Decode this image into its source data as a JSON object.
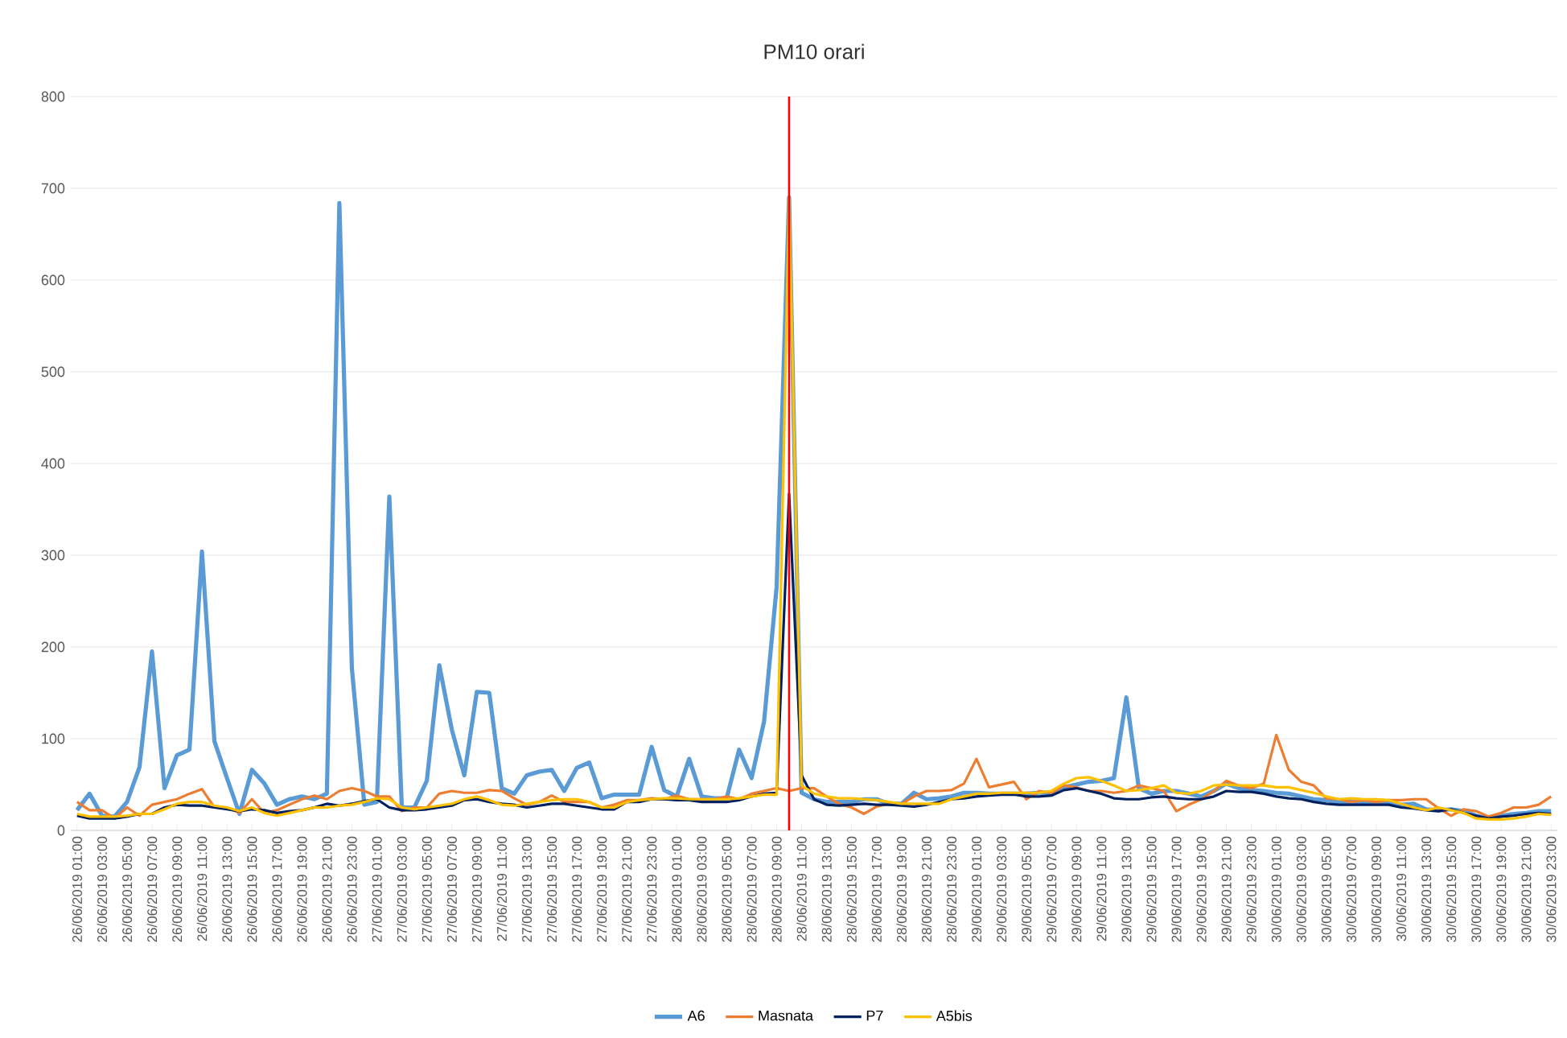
{
  "chart_data": {
    "type": "line",
    "title": "PM10 orari",
    "x": [
      "2019-06-26T01:00",
      "2019-06-26T02:00",
      "2019-06-26T03:00",
      "2019-06-26T04:00",
      "2019-06-26T05:00",
      "2019-06-26T06:00",
      "2019-06-26T07:00",
      "2019-06-26T08:00",
      "2019-06-26T09:00",
      "2019-06-26T10:00",
      "2019-06-26T11:00",
      "2019-06-26T12:00",
      "2019-06-26T13:00",
      "2019-06-26T14:00",
      "2019-06-26T15:00",
      "2019-06-26T16:00",
      "2019-06-26T17:00",
      "2019-06-26T18:00",
      "2019-06-26T19:00",
      "2019-06-26T20:00",
      "2019-06-26T21:00",
      "2019-06-26T22:00",
      "2019-06-26T23:00",
      "2019-06-27T00:00",
      "2019-06-27T01:00",
      "2019-06-27T02:00",
      "2019-06-27T03:00",
      "2019-06-27T04:00",
      "2019-06-27T05:00",
      "2019-06-27T06:00",
      "2019-06-27T07:00",
      "2019-06-27T08:00",
      "2019-06-27T09:00",
      "2019-06-27T10:00",
      "2019-06-27T11:00",
      "2019-06-27T12:00",
      "2019-06-27T13:00",
      "2019-06-27T14:00",
      "2019-06-27T15:00",
      "2019-06-27T16:00",
      "2019-06-27T17:00",
      "2019-06-27T18:00",
      "2019-06-27T19:00",
      "2019-06-27T20:00",
      "2019-06-27T21:00",
      "2019-06-27T22:00",
      "2019-06-27T23:00",
      "2019-06-28T00:00",
      "2019-06-28T01:00",
      "2019-06-28T02:00",
      "2019-06-28T03:00",
      "2019-06-28T04:00",
      "2019-06-28T05:00",
      "2019-06-28T06:00",
      "2019-06-28T07:00",
      "2019-06-28T08:00",
      "2019-06-28T09:00",
      "2019-06-28T10:00",
      "2019-06-28T11:00",
      "2019-06-28T12:00",
      "2019-06-28T13:00",
      "2019-06-28T14:00",
      "2019-06-28T15:00",
      "2019-06-28T16:00",
      "2019-06-28T17:00",
      "2019-06-28T18:00",
      "2019-06-28T19:00",
      "2019-06-28T20:00",
      "2019-06-28T21:00",
      "2019-06-28T22:00",
      "2019-06-28T23:00",
      "2019-06-29T00:00",
      "2019-06-29T01:00",
      "2019-06-29T02:00",
      "2019-06-29T03:00",
      "2019-06-29T04:00",
      "2019-06-29T05:00",
      "2019-06-29T06:00",
      "2019-06-29T07:00",
      "2019-06-29T08:00",
      "2019-06-29T09:00",
      "2019-06-29T10:00",
      "2019-06-29T11:00",
      "2019-06-29T12:00",
      "2019-06-29T13:00",
      "2019-06-29T14:00",
      "2019-06-29T15:00",
      "2019-06-29T16:00",
      "2019-06-29T17:00",
      "2019-06-29T18:00",
      "2019-06-29T19:00",
      "2019-06-29T20:00",
      "2019-06-29T21:00",
      "2019-06-29T22:00",
      "2019-06-29T23:00",
      "2019-06-30T00:00",
      "2019-06-30T01:00",
      "2019-06-30T02:00",
      "2019-06-30T03:00",
      "2019-06-30T04:00",
      "2019-06-30T05:00",
      "2019-06-30T06:00",
      "2019-06-30T07:00",
      "2019-06-30T08:00",
      "2019-06-30T09:00",
      "2019-06-30T10:00",
      "2019-06-30T11:00",
      "2019-06-30T12:00",
      "2019-06-30T13:00",
      "2019-06-30T14:00",
      "2019-06-30T15:00",
      "2019-06-30T16:00",
      "2019-06-30T17:00",
      "2019-06-30T18:00",
      "2019-06-30T19:00",
      "2019-06-30T20:00",
      "2019-06-30T21:00",
      "2019-06-30T22:00",
      "2019-06-30T23:00"
    ],
    "series": [
      {
        "name": "A6",
        "color": "#5b9bd5",
        "values": [
          22,
          40,
          16,
          15,
          31,
          69,
          195,
          46,
          82,
          88,
          304,
          97,
          57,
          18,
          66,
          51,
          28,
          34,
          37,
          34,
          40,
          684,
          177,
          28,
          31,
          364,
          25,
          25,
          54,
          180,
          110,
          60,
          151,
          150,
          46,
          40,
          60,
          64,
          66,
          43,
          68,
          74,
          35,
          39,
          39,
          39,
          91,
          44,
          37,
          78,
          37,
          35,
          35,
          88,
          57,
          119,
          265,
          690,
          41,
          34,
          31,
          31,
          31,
          34,
          34,
          29,
          29,
          41,
          34,
          35,
          37,
          41,
          41,
          40,
          40,
          40,
          40,
          41,
          41,
          47,
          50,
          53,
          54,
          57,
          145,
          46,
          40,
          43,
          43,
          40,
          37,
          43,
          51,
          46,
          44,
          43,
          41,
          40,
          37,
          34,
          33,
          31,
          31,
          31,
          30,
          30,
          28,
          29,
          23,
          22,
          23,
          21,
          16,
          13,
          16,
          18,
          19,
          21,
          21
        ]
      },
      {
        "name": "Masnata",
        "color": "#ed7d31",
        "values": [
          31,
          22,
          22,
          13,
          25,
          16,
          28,
          31,
          34,
          40,
          45,
          25,
          25,
          19,
          34,
          19,
          22,
          28,
          34,
          38,
          34,
          43,
          46,
          43,
          37,
          37,
          21,
          25,
          25,
          40,
          43,
          41,
          41,
          44,
          43,
          35,
          28,
          31,
          38,
          31,
          31,
          31,
          25,
          28,
          33,
          33,
          35,
          34,
          38,
          34,
          34,
          34,
          37,
          34,
          40,
          43,
          46,
          43,
          46,
          46,
          37,
          29,
          25,
          18,
          26,
          29,
          29,
          37,
          43,
          43,
          44,
          51,
          78,
          47,
          50,
          53,
          34,
          43,
          41,
          49,
          47,
          43,
          43,
          41,
          43,
          49,
          46,
          43,
          21,
          28,
          34,
          43,
          54,
          49,
          46,
          51,
          104,
          66,
          53,
          49,
          35,
          34,
          31,
          33,
          31,
          33,
          33,
          34,
          34,
          24,
          16,
          23,
          21,
          15,
          19,
          25,
          25,
          28,
          37
        ]
      },
      {
        "name": "P7",
        "color": "#002060",
        "values": [
          16,
          13,
          13,
          13,
          15,
          18,
          18,
          25,
          28,
          27,
          27,
          25,
          23,
          21,
          23,
          22,
          19,
          21,
          22,
          25,
          29,
          27,
          29,
          32,
          34,
          25,
          22,
          22,
          23,
          25,
          27,
          33,
          34,
          31,
          29,
          28,
          25,
          27,
          29,
          29,
          27,
          25,
          23,
          23,
          31,
          31,
          34,
          34,
          33,
          33,
          31,
          31,
          31,
          33,
          37,
          40,
          41,
          367,
          60,
          34,
          28,
          27,
          28,
          29,
          28,
          28,
          27,
          26,
          28,
          31,
          34,
          35,
          37,
          38,
          39,
          39,
          37,
          37,
          38,
          44,
          46,
          43,
          40,
          35,
          34,
          34,
          36,
          37,
          35,
          34,
          34,
          37,
          43,
          42,
          42,
          40,
          37,
          35,
          34,
          31,
          29,
          28,
          28,
          28,
          28,
          28,
          25,
          24,
          22,
          21,
          23,
          19,
          16,
          13,
          15,
          16,
          18,
          19,
          18
        ]
      },
      {
        "name": "A5bis",
        "color": "#ffc000",
        "values": [
          18,
          15,
          15,
          15,
          16,
          18,
          18,
          23,
          29,
          31,
          31,
          27,
          25,
          21,
          25,
          19,
          16,
          19,
          22,
          25,
          25,
          27,
          28,
          31,
          35,
          34,
          25,
          23,
          25,
          27,
          29,
          34,
          37,
          33,
          28,
          27,
          29,
          31,
          33,
          34,
          34,
          31,
          25,
          25,
          31,
          33,
          34,
          35,
          35,
          34,
          34,
          34,
          34,
          35,
          37,
          39,
          39,
          690,
          49,
          40,
          37,
          35,
          35,
          34,
          33,
          31,
          29,
          29,
          29,
          29,
          34,
          37,
          40,
          40,
          41,
          41,
          41,
          41,
          43,
          51,
          57,
          58,
          54,
          49,
          43,
          44,
          46,
          49,
          41,
          40,
          43,
          49,
          50,
          49,
          49,
          49,
          47,
          47,
          44,
          41,
          37,
          34,
          35,
          34,
          34,
          33,
          29,
          25,
          22,
          25,
          22,
          19,
          13,
          12,
          12,
          13,
          15,
          18,
          17
        ]
      }
    ],
    "xlim": [
      "2019-06-26T00:30",
      "2019-06-30T23:30"
    ],
    "xticks": [
      {
        "value": "2019-06-26T01:00",
        "label": "26/06/2019 01:00"
      },
      {
        "value": "2019-06-26T03:00",
        "label": "26/06/2019 03:00"
      },
      {
        "value": "2019-06-26T05:00",
        "label": "26/06/2019 05:00"
      },
      {
        "value": "2019-06-26T07:00",
        "label": "26/06/2019 07:00"
      },
      {
        "value": "2019-06-26T09:00",
        "label": "26/06/2019 09:00"
      },
      {
        "value": "2019-06-26T11:00",
        "label": "26/06/2019 11:00"
      },
      {
        "value": "2019-06-26T13:00",
        "label": "26/06/2019 13:00"
      },
      {
        "value": "2019-06-26T15:00",
        "label": "26/06/2019 15:00"
      },
      {
        "value": "2019-06-26T17:00",
        "label": "26/06/2019 17:00"
      },
      {
        "value": "2019-06-26T19:00",
        "label": "26/06/2019 19:00"
      },
      {
        "value": "2019-06-26T21:00",
        "label": "26/06/2019 21:00"
      },
      {
        "value": "2019-06-26T23:00",
        "label": "26/06/2019 23:00"
      },
      {
        "value": "2019-06-27T01:00",
        "label": "27/06/2019 01:00"
      },
      {
        "value": "2019-06-27T03:00",
        "label": "27/06/2019 03:00"
      },
      {
        "value": "2019-06-27T05:00",
        "label": "27/06/2019 05:00"
      },
      {
        "value": "2019-06-27T07:00",
        "label": "27/06/2019 07:00"
      },
      {
        "value": "2019-06-27T09:00",
        "label": "27/06/2019 09:00"
      },
      {
        "value": "2019-06-27T11:00",
        "label": "27/06/2019 11:00"
      },
      {
        "value": "2019-06-27T13:00",
        "label": "27/06/2019 13:00"
      },
      {
        "value": "2019-06-27T15:00",
        "label": "27/06/2019 15:00"
      },
      {
        "value": "2019-06-27T17:00",
        "label": "27/06/2019 17:00"
      },
      {
        "value": "2019-06-27T19:00",
        "label": "27/06/2019 19:00"
      },
      {
        "value": "2019-06-27T21:00",
        "label": "27/06/2019 21:00"
      },
      {
        "value": "2019-06-27T23:00",
        "label": "27/06/2019 23:00"
      },
      {
        "value": "2019-06-28T01:00",
        "label": "28/06/2019 01:00"
      },
      {
        "value": "2019-06-28T03:00",
        "label": "28/06/2019 03:00"
      },
      {
        "value": "2019-06-28T05:00",
        "label": "28/06/2019 05:00"
      },
      {
        "value": "2019-06-28T07:00",
        "label": "28/06/2019 07:00"
      },
      {
        "value": "2019-06-28T09:00",
        "label": "28/06/2019 09:00"
      },
      {
        "value": "2019-06-28T11:00",
        "label": "28/06/2019 11:00"
      },
      {
        "value": "2019-06-28T13:00",
        "label": "28/06/2019 13:00"
      },
      {
        "value": "2019-06-28T15:00",
        "label": "28/06/2019 15:00"
      },
      {
        "value": "2019-06-28T17:00",
        "label": "28/06/2019 17:00"
      },
      {
        "value": "2019-06-28T19:00",
        "label": "28/06/2019 19:00"
      },
      {
        "value": "2019-06-28T21:00",
        "label": "28/06/2019 21:00"
      },
      {
        "value": "2019-06-28T23:00",
        "label": "28/06/2019 23:00"
      },
      {
        "value": "2019-06-29T01:00",
        "label": "29/06/2019 01:00"
      },
      {
        "value": "2019-06-29T03:00",
        "label": "29/06/2019 03:00"
      },
      {
        "value": "2019-06-29T05:00",
        "label": "29/06/2019 05:00"
      },
      {
        "value": "2019-06-29T07:00",
        "label": "29/06/2019 07:00"
      },
      {
        "value": "2019-06-29T09:00",
        "label": "29/06/2019 09:00"
      },
      {
        "value": "2019-06-29T11:00",
        "label": "29/06/2019 11:00"
      },
      {
        "value": "2019-06-29T13:00",
        "label": "29/06/2019 13:00"
      },
      {
        "value": "2019-06-29T15:00",
        "label": "29/06/2019 15:00"
      },
      {
        "value": "2019-06-29T17:00",
        "label": "29/06/2019 17:00"
      },
      {
        "value": "2019-06-29T19:00",
        "label": "29/06/2019 19:00"
      },
      {
        "value": "2019-06-29T21:00",
        "label": "29/06/2019 21:00"
      },
      {
        "value": "2019-06-29T23:00",
        "label": "29/06/2019 23:00"
      },
      {
        "value": "2019-06-30T01:00",
        "label": "30/06/2019 01:00"
      },
      {
        "value": "2019-06-30T03:00",
        "label": "30/06/2019 03:00"
      },
      {
        "value": "2019-06-30T05:00",
        "label": "30/06/2019 05:00"
      },
      {
        "value": "2019-06-30T07:00",
        "label": "30/06/2019 07:00"
      },
      {
        "value": "2019-06-30T09:00",
        "label": "30/06/2019 09:00"
      },
      {
        "value": "2019-06-30T11:00",
        "label": "30/06/2019 11:00"
      },
      {
        "value": "2019-06-30T13:00",
        "label": "30/06/2019 13:00"
      },
      {
        "value": "2019-06-30T15:00",
        "label": "30/06/2019 15:00"
      },
      {
        "value": "2019-06-30T17:00",
        "label": "30/06/2019 17:00"
      },
      {
        "value": "2019-06-30T19:00",
        "label": "30/06/2019 19:00"
      },
      {
        "value": "2019-06-30T21:00",
        "label": "30/06/2019 21:00"
      },
      {
        "value": "2019-06-30T23:00",
        "label": "30/06/2019 23:00"
      }
    ],
    "ylim": [
      0,
      800
    ],
    "yticks": [
      0,
      100,
      200,
      300,
      400,
      500,
      600,
      700,
      800
    ],
    "ref_lines": [
      {
        "axis": "x",
        "value": "2019-06-28T10:00",
        "color": "#ff0000"
      }
    ],
    "grid": "y",
    "legend": "bottom",
    "marker": "none",
    "line_style": "solid"
  }
}
